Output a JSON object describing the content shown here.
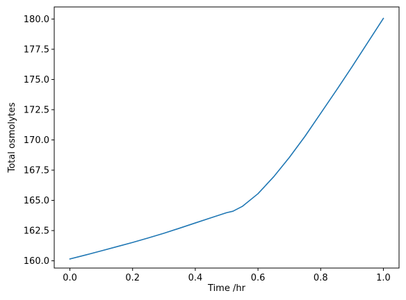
{
  "chart_data": {
    "type": "line",
    "xlabel": "Time /hr",
    "ylabel": "Total osmolytes",
    "xlim": [
      -0.05,
      1.05
    ],
    "ylim": [
      159.4,
      181.0
    ],
    "grid": false,
    "x_ticks": [
      {
        "value": 0.0,
        "label": "0.0"
      },
      {
        "value": 0.2,
        "label": "0.2"
      },
      {
        "value": 0.4,
        "label": "0.4"
      },
      {
        "value": 0.6,
        "label": "0.6"
      },
      {
        "value": 0.8,
        "label": "0.8"
      },
      {
        "value": 1.0,
        "label": "1.0"
      }
    ],
    "y_ticks": [
      {
        "value": 160.0,
        "label": "160.0"
      },
      {
        "value": 162.5,
        "label": "162.5"
      },
      {
        "value": 165.0,
        "label": "165.0"
      },
      {
        "value": 167.5,
        "label": "167.5"
      },
      {
        "value": 170.0,
        "label": "170.0"
      },
      {
        "value": 172.5,
        "label": "172.5"
      },
      {
        "value": 175.0,
        "label": "175.0"
      },
      {
        "value": 177.5,
        "label": "177.5"
      },
      {
        "value": 180.0,
        "label": "180.0"
      }
    ],
    "series": [
      {
        "color": "#1f77b4",
        "x": [
          0.0,
          0.05,
          0.1,
          0.15,
          0.2,
          0.25,
          0.3,
          0.35,
          0.4,
          0.45,
          0.5,
          0.52,
          0.55,
          0.6,
          0.65,
          0.7,
          0.75,
          0.8,
          0.85,
          0.9,
          0.95,
          1.0
        ],
        "y": [
          160.15,
          160.48,
          160.82,
          161.17,
          161.52,
          161.89,
          162.28,
          162.7,
          163.13,
          163.56,
          163.98,
          164.1,
          164.5,
          165.55,
          166.95,
          168.55,
          170.3,
          172.2,
          174.1,
          176.05,
          178.05,
          180.05
        ]
      }
    ]
  }
}
